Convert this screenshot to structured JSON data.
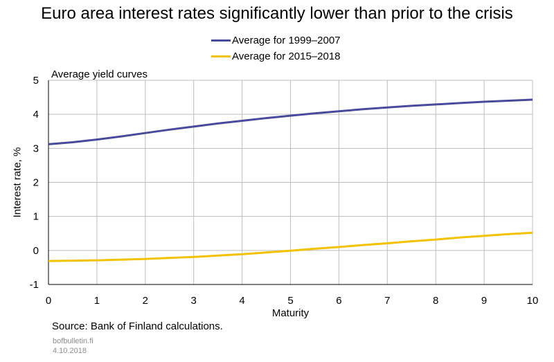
{
  "chart_data": {
    "type": "line",
    "title": "Euro area interest rates significantly lower than prior to the crisis",
    "subtitle": "Average yield curves",
    "xlabel": "Maturity",
    "ylabel": "Interest rate, %",
    "xlim": [
      0,
      10
    ],
    "ylim": [
      -1,
      5
    ],
    "x_ticks": [
      "0",
      "1",
      "2",
      "3",
      "4",
      "5",
      "6",
      "7",
      "8",
      "9",
      "10"
    ],
    "y_ticks": [
      "-1",
      "0",
      "1",
      "2",
      "3",
      "4",
      "5"
    ],
    "grid": true,
    "legend_position": "top-center",
    "series": [
      {
        "name": "Average for 1999–2007",
        "color": "#4a4a9c",
        "x": [
          0,
          0.5,
          1,
          1.5,
          2,
          2.5,
          3,
          3.5,
          4,
          4.5,
          5,
          5.5,
          6,
          6.5,
          7,
          7.5,
          8,
          8.5,
          9,
          9.5,
          10
        ],
        "y": [
          3.12,
          3.18,
          3.26,
          3.35,
          3.45,
          3.55,
          3.64,
          3.73,
          3.81,
          3.89,
          3.96,
          4.03,
          4.09,
          4.15,
          4.2,
          4.25,
          4.29,
          4.33,
          4.37,
          4.4,
          4.43
        ]
      },
      {
        "name": "Average for 2015–2018",
        "color": "#f2c200",
        "x": [
          0,
          0.5,
          1,
          1.5,
          2,
          2.5,
          3,
          3.5,
          4,
          4.5,
          5,
          5.5,
          6,
          6.5,
          7,
          7.5,
          8,
          8.5,
          9,
          9.5,
          10
        ],
        "y": [
          -0.31,
          -0.3,
          -0.29,
          -0.27,
          -0.25,
          -0.22,
          -0.19,
          -0.15,
          -0.11,
          -0.06,
          -0.01,
          0.05,
          0.1,
          0.16,
          0.21,
          0.27,
          0.32,
          0.38,
          0.43,
          0.48,
          0.52
        ]
      }
    ],
    "source": "Source: Bank of Finland calculations.",
    "footer_site": "bofbulletin.fi",
    "footer_date": "4.10.2018"
  }
}
